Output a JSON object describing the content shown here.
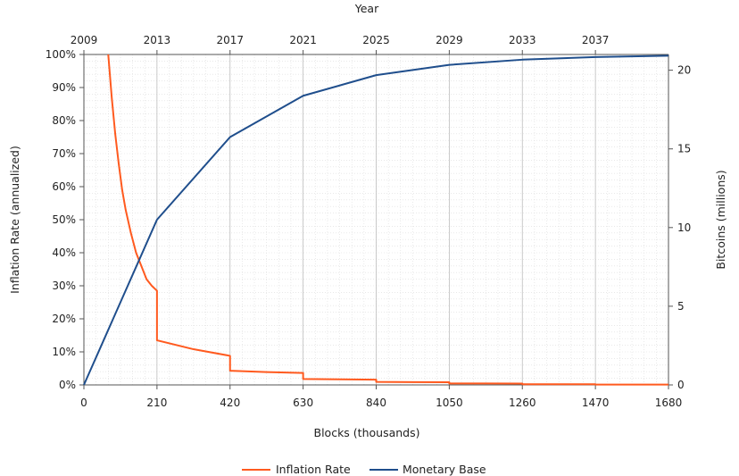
{
  "chart_data": {
    "type": "line",
    "top_axis": {
      "title": "Year",
      "ticks": [
        "2009",
        "2013",
        "2017",
        "2021",
        "2025",
        "2029",
        "2033",
        "2037"
      ]
    },
    "x_axis": {
      "title": "Blocks (thousands)",
      "range": [
        0,
        1680
      ],
      "ticks": [
        "0",
        "210",
        "420",
        "630",
        "840",
        "1050",
        "1260",
        "1470",
        "1680"
      ]
    },
    "y_left": {
      "title": "Inflation Rate (annualized)",
      "range": [
        0,
        100
      ],
      "ticks": [
        "0%",
        "10%",
        "20%",
        "30%",
        "40%",
        "50%",
        "60%",
        "70%",
        "80%",
        "90%",
        "100%"
      ]
    },
    "y_right": {
      "title": "Bitcoins (millions)",
      "range": [
        0,
        21
      ],
      "ticks": [
        "0",
        "5",
        "10",
        "15",
        "20"
      ]
    },
    "grid": true,
    "legend_position": "bottom",
    "colors": {
      "inflation": "#ff5a1f",
      "monetary": "#1f4e8c"
    },
    "series": [
      {
        "name": "Inflation Rate",
        "axis": "left",
        "x": [
          70,
          80,
          90,
          100,
          110,
          120,
          135,
          150,
          165,
          180,
          195,
          210,
          210,
          315,
          420,
          420,
          525,
          630,
          630,
          735,
          840,
          840,
          945,
          1050,
          1050,
          1155,
          1260,
          1260,
          1365,
          1470,
          1470,
          1680
        ],
        "values": [
          100,
          87,
          76,
          67,
          59,
          53,
          46,
          40,
          36,
          32,
          30,
          28.5,
          13.5,
          10.8,
          8.8,
          4.3,
          3.9,
          3.6,
          1.8,
          1.7,
          1.6,
          0.9,
          0.85,
          0.8,
          0.45,
          0.43,
          0.41,
          0.22,
          0.21,
          0.2,
          0.1,
          0.1
        ]
      },
      {
        "name": "Monetary Base",
        "axis": "right",
        "x": [
          0,
          210,
          420,
          630,
          840,
          1050,
          1260,
          1470,
          1680
        ],
        "values": [
          0,
          10.5,
          15.75,
          18.375,
          19.6875,
          20.34,
          20.67,
          20.84,
          20.92
        ]
      }
    ]
  }
}
